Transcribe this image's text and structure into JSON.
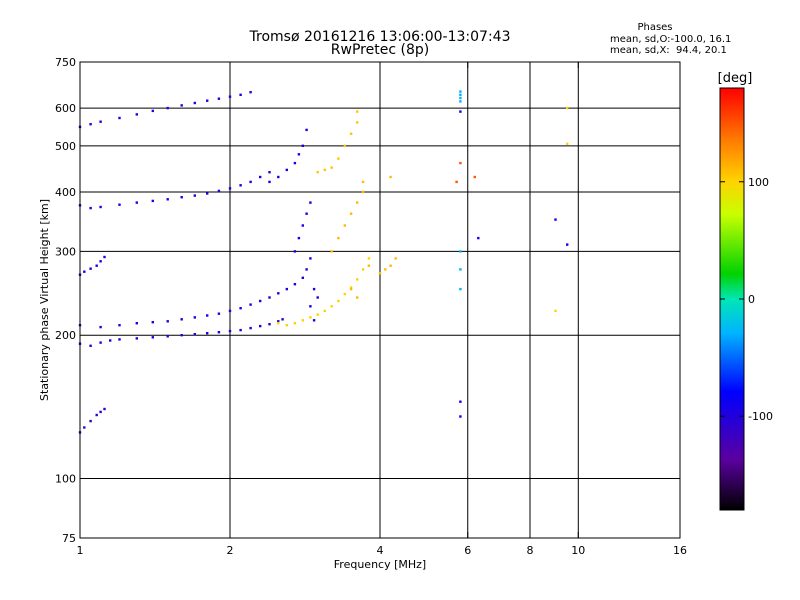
{
  "chart_data": {
    "type": "scatter",
    "title": "Tromsø 20161216 13:06:00-13:07:43",
    "subtitle": "RwPretec (8p)",
    "xlabel": "Frequency [MHz]",
    "ylabel": "Stationary phase Virtual Height [km]",
    "x_scale": "log",
    "y_scale": "log",
    "xlim": [
      1,
      16
    ],
    "ylim": [
      75,
      750
    ],
    "x_ticks": [
      1,
      2,
      4,
      6,
      8,
      10,
      16
    ],
    "y_ticks": [
      75,
      100,
      200,
      300,
      400,
      500,
      600,
      750
    ],
    "grid": true,
    "stats": {
      "heading": "Phases",
      "line_o": "mean, sd,O:-100.0, 16.1",
      "line_x": "mean, sd,X:  94.4, 20.1"
    },
    "colorbar": {
      "label": "[deg]",
      "range": [
        -180,
        180
      ],
      "ticks": [
        100,
        0,
        -100
      ],
      "tick_labels": [
        "100",
        "0",
        "-100"
      ]
    },
    "series": [
      {
        "phase": -100,
        "x": [
          1.0,
          1.05,
          1.1,
          1.15,
          1.2,
          1.3,
          1.4,
          1.5,
          1.6,
          1.7,
          1.8,
          1.9,
          2.0,
          2.1,
          2.2,
          2.3,
          2.4,
          2.5,
          2.55
        ],
        "y": [
          192,
          190,
          193,
          195,
          196,
          197,
          198,
          199,
          200,
          201,
          202,
          203,
          204,
          205,
          207,
          209,
          211,
          214,
          216
        ]
      },
      {
        "phase": -100,
        "x": [
          1.0,
          1.1,
          1.2,
          1.3,
          1.4,
          1.5,
          1.6,
          1.7,
          1.8,
          1.9,
          2.0,
          2.1,
          2.2,
          2.3,
          2.4,
          2.5,
          2.6,
          2.7,
          2.8,
          2.85,
          2.9
        ],
        "y": [
          210,
          208,
          210,
          212,
          213,
          214,
          216,
          218,
          220,
          222,
          225,
          228,
          232,
          236,
          240,
          245,
          250,
          256,
          264,
          275,
          290
        ]
      },
      {
        "phase": -95,
        "x": [
          2.7,
          2.75,
          2.8,
          2.85,
          2.9,
          2.95,
          3.0,
          2.9,
          2.95
        ],
        "y": [
          300,
          320,
          340,
          360,
          380,
          250,
          240,
          230,
          215
        ]
      },
      {
        "phase": -100,
        "x": [
          1.0,
          1.05,
          1.1,
          1.2,
          1.3,
          1.4,
          1.5,
          1.6,
          1.7,
          1.8,
          1.9,
          2.0,
          2.1,
          2.2,
          2.3,
          2.4
        ],
        "y": [
          375,
          370,
          372,
          376,
          380,
          383,
          386,
          390,
          393,
          397,
          402,
          407,
          413,
          420,
          430,
          440
        ]
      },
      {
        "phase": -95,
        "x": [
          2.4,
          2.5,
          2.6,
          2.7,
          2.75,
          2.8,
          2.85
        ],
        "y": [
          420,
          430,
          445,
          460,
          480,
          500,
          540
        ]
      },
      {
        "phase": -100,
        "x": [
          1.0,
          1.05,
          1.1,
          1.2,
          1.3,
          1.4,
          1.5,
          1.6,
          1.7,
          1.8,
          1.9,
          2.0,
          2.1,
          2.2
        ],
        "y": [
          548,
          555,
          562,
          572,
          582,
          592,
          600,
          608,
          615,
          622,
          628,
          634,
          640,
          648
        ]
      },
      {
        "phase": -100,
        "x": [
          1.0,
          1.02,
          1.05,
          1.08,
          1.1,
          1.12
        ],
        "y": [
          268,
          272,
          276,
          280,
          286,
          292
        ]
      },
      {
        "phase": -110,
        "x": [
          1.0,
          1.02,
          1.05,
          1.08,
          1.1,
          1.12
        ],
        "y": [
          125,
          128,
          132,
          136,
          138,
          140
        ]
      },
      {
        "phase": 100,
        "x": [
          2.5,
          2.6,
          2.7,
          2.8,
          2.9,
          3.0,
          3.1,
          3.2,
          3.3,
          3.4,
          3.5,
          3.6,
          3.7,
          3.8
        ],
        "y": [
          212,
          210,
          212,
          215,
          218,
          221,
          225,
          230,
          236,
          244,
          252,
          262,
          275,
          290
        ]
      },
      {
        "phase": 110,
        "x": [
          3.2,
          3.3,
          3.4,
          3.5,
          3.6,
          3.7,
          3.8,
          3.5,
          3.6,
          3.7
        ],
        "y": [
          300,
          320,
          340,
          360,
          380,
          400,
          280,
          250,
          240,
          420
        ]
      },
      {
        "phase": 105,
        "x": [
          3.0,
          3.1,
          3.2,
          3.3,
          3.4,
          3.5,
          3.6,
          3.6
        ],
        "y": [
          440,
          445,
          450,
          470,
          500,
          530,
          560,
          590
        ]
      },
      {
        "phase": 110,
        "x": [
          4.0,
          4.1,
          4.2,
          4.3,
          4.2
        ],
        "y": [
          270,
          275,
          280,
          290,
          430
        ]
      },
      {
        "phase": -30,
        "x": [
          5.8,
          5.8,
          5.8,
          5.8,
          5.8,
          5.8,
          5.8
        ],
        "y": [
          650,
          640,
          630,
          620,
          300,
          275,
          250
        ]
      },
      {
        "phase": -90,
        "x": [
          5.8,
          5.8,
          5.8,
          6.3,
          9.0,
          9.5
        ],
        "y": [
          590,
          135,
          145,
          320,
          350,
          310
        ]
      },
      {
        "phase": 150,
        "x": [
          5.7,
          5.8,
          6.2
        ],
        "y": [
          420,
          460,
          430
        ]
      },
      {
        "phase": 100,
        "x": [
          9.0,
          9.5,
          9.5
        ],
        "y": [
          225,
          505,
          600
        ]
      }
    ]
  }
}
